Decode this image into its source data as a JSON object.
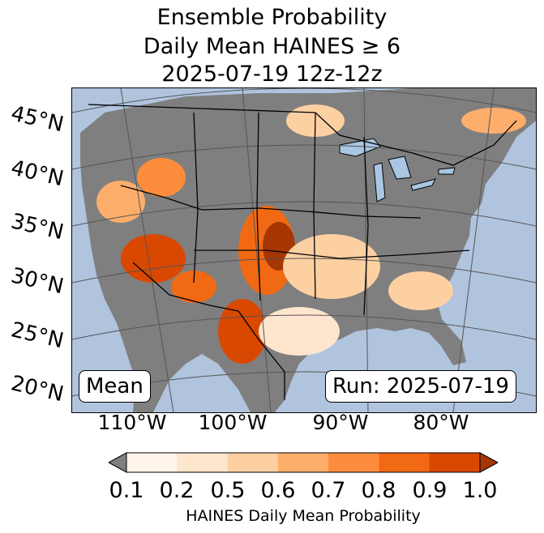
{
  "title": {
    "line1": "Ensemble Probability",
    "line2": "Daily Mean HAINES ≥ 6",
    "line3": "2025-07-19 12z-12z"
  },
  "map": {
    "lat_labels": [
      "45°N",
      "40°N",
      "35°N",
      "30°N",
      "25°N",
      "20°N"
    ],
    "lon_labels": [
      "110°W",
      "100°W",
      "90°W",
      "80°W"
    ],
    "mean_label": "Mean",
    "run_label": "Run: 2025-07-19",
    "colors": {
      "ocean": "#b0c4de",
      "lake": "#a9c6e2",
      "no_data": "#7f7f7f",
      "border": "#000000",
      "graticule": "#555555"
    }
  },
  "colorbar": {
    "label": "HAINES Daily Mean Probability",
    "ticks": [
      "0.1",
      "0.2",
      "0.5",
      "0.6",
      "0.7",
      "0.8",
      "0.9",
      "1.0"
    ],
    "under_color": "#7f7f7f",
    "colors": [
      "#fff5eb",
      "#fee6ce",
      "#fdd0a2",
      "#fdae6b",
      "#fd8d3c",
      "#f16913",
      "#d94801",
      "#a63603"
    ]
  }
}
